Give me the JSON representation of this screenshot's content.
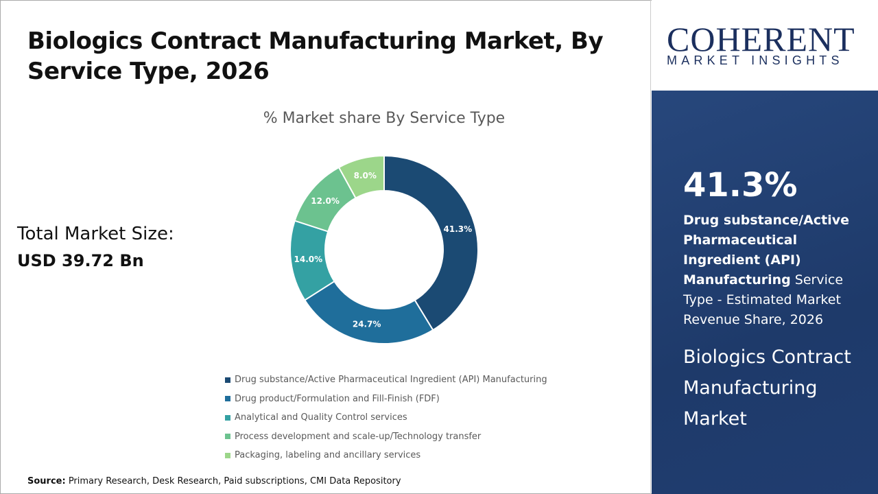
{
  "title": "Biologics Contract Manufacturing Market, By Service Type, 2026",
  "total_market": {
    "label": "Total Market Size:",
    "value": "USD 39.72 Bn"
  },
  "source": {
    "label": "Source:",
    "text": " Primary Research, Desk Research, Paid subscriptions, CMI Data Repository"
  },
  "logo": {
    "main": "COHERENT",
    "sub": "MARKET INSIGHTS"
  },
  "panel": {
    "percent": "41.3%",
    "desc_bold": "Drug substance/Active Pharmaceutical Ingredient (API) Manufacturing",
    "desc_rest": " Service Type - Estimated Market Revenue Share, 2026",
    "market": "Biologics Contract Manufacturing Market",
    "bg_color": "#1e3a6a"
  },
  "chart_data": {
    "type": "pie",
    "donut": true,
    "title": "% Market share By Service Type",
    "categories": [
      "Drug substance/Active Pharmaceutical Ingredient (API) Manufacturing",
      "Drug product/Formulation and Fill-Finish (FDF)",
      "Analytical and Quality Control services",
      "Process development and scale-up/Technology transfer",
      "Packaging, labeling and ancillary services"
    ],
    "values": [
      41.3,
      24.7,
      14.0,
      12.0,
      8.0
    ],
    "labels": [
      "41.3%",
      "24.7%",
      "14.0%",
      "12.0%",
      "8.0%"
    ],
    "colors": [
      "#1b4a73",
      "#1f6e9b",
      "#34a1a3",
      "#6cc28f",
      "#9cd68a"
    ],
    "legend": "bottom"
  }
}
